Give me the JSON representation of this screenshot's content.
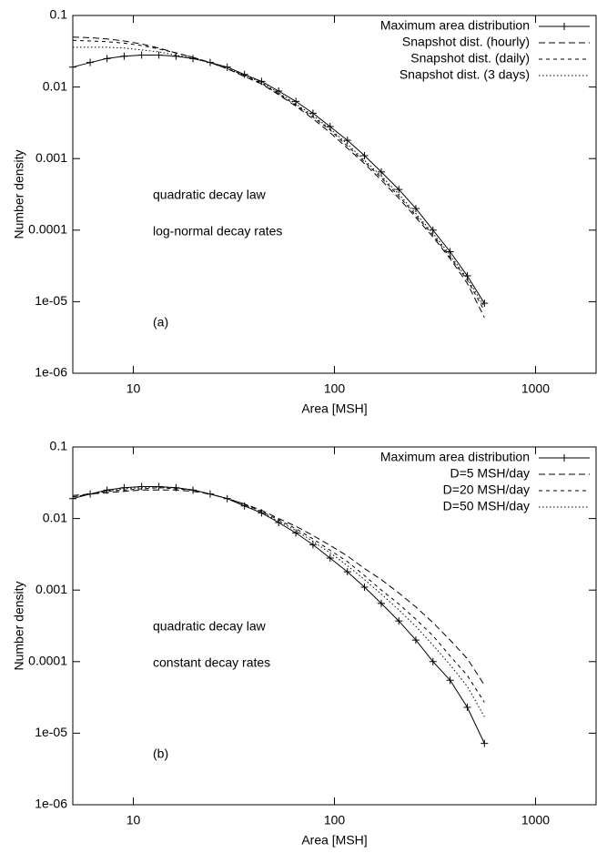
{
  "chart_data": [
    {
      "type": "line",
      "xlabel": "Area [MSH]",
      "ylabel": "Number density",
      "xlog": true,
      "ylog": true,
      "legend": "upper right",
      "xlim": [
        5,
        2000
      ],
      "xticks": [
        10,
        100,
        1000
      ],
      "ylim": [
        1e-06,
        0.1
      ],
      "yticks": [
        0.1,
        0.01,
        0.001,
        0.0001,
        {
          "value": 1e-05,
          "label": "1e-05"
        },
        {
          "value": 1e-06,
          "label": "1e-06"
        }
      ],
      "annotations": [
        "quadratic decay law",
        "log-normal decay rates",
        "(a)"
      ],
      "x": [
        5,
        6.1,
        7.4,
        9,
        11,
        13.4,
        16.3,
        19.8,
        24.1,
        29.3,
        35.7,
        43.4,
        52.8,
        64.3,
        78.2,
        95.2,
        116,
        141,
        171,
        209,
        254,
        309,
        376,
        458,
        557
      ],
      "series": [
        {
          "name": "Maximum area distribution",
          "color": "#000000",
          "style": "solid-plus",
          "values": [
            0.019,
            0.022,
            0.025,
            0.027,
            0.028,
            0.028,
            0.027,
            0.025,
            0.022,
            0.019,
            0.015,
            0.012,
            0.0088,
            0.0063,
            0.0043,
            0.0028,
            0.0018,
            0.0011,
            0.00065,
            0.00037,
            0.0002,
            0.0001,
            5e-05,
            2.3e-05,
            9.5e-06
          ]
        },
        {
          "name": "Snapshot dist. (hourly)",
          "color": "#000000",
          "style": "dashed",
          "values": [
            0.05,
            0.049,
            0.047,
            0.044,
            0.04,
            0.035,
            0.03,
            0.026,
            0.022,
            0.018,
            0.014,
            0.011,
            0.0078,
            0.0054,
            0.0036,
            0.0023,
            0.0014,
            0.00085,
            0.0005,
            0.00028,
            0.00015,
            8e-05,
            4e-05,
            1.8e-05,
            6e-06
          ]
        },
        {
          "name": "Snapshot dist. (daily)",
          "color": "#000000",
          "style": "short-dashed",
          "values": [
            0.045,
            0.044,
            0.043,
            0.041,
            0.038,
            0.034,
            0.03,
            0.026,
            0.022,
            0.018,
            0.0145,
            0.0112,
            0.008,
            0.0056,
            0.0038,
            0.0025,
            0.0015,
            0.0009,
            0.00054,
            0.0003,
            0.00016,
            8.5e-05,
            4.2e-05,
            2e-05,
            7.5e-06
          ]
        },
        {
          "name": "Snapshot dist. (3 days)",
          "color": "#000000",
          "style": "dotted",
          "values": [
            0.036,
            0.036,
            0.036,
            0.035,
            0.033,
            0.031,
            0.028,
            0.025,
            0.022,
            0.018,
            0.0148,
            0.0115,
            0.0083,
            0.0058,
            0.004,
            0.0026,
            0.0016,
            0.00095,
            0.00057,
            0.00032,
            0.00017,
            9e-05,
            4.5e-05,
            2.1e-05,
            8.5e-06
          ]
        }
      ]
    },
    {
      "type": "line",
      "xlabel": "Area [MSH]",
      "ylabel": "Number density",
      "xlog": true,
      "ylog": true,
      "legend": "upper right",
      "xlim": [
        5,
        2000
      ],
      "xticks": [
        10,
        100,
        1000
      ],
      "ylim": [
        1e-06,
        0.1
      ],
      "yticks": [
        0.1,
        0.01,
        0.001,
        0.0001,
        {
          "value": 1e-05,
          "label": "1e-05"
        },
        {
          "value": 1e-06,
          "label": "1e-06"
        }
      ],
      "annotations": [
        "quadratic decay law",
        "constant decay rates",
        "(b)"
      ],
      "x": [
        5,
        6.1,
        7.4,
        9,
        11,
        13.4,
        16.3,
        19.8,
        24.1,
        29.3,
        35.7,
        43.4,
        52.8,
        64.3,
        78.2,
        95.2,
        116,
        141,
        171,
        209,
        254,
        309,
        376,
        458,
        557
      ],
      "series": [
        {
          "name": "Maximum area distribution",
          "color": "#000000",
          "style": "solid-plus",
          "values": [
            0.019,
            0.022,
            0.025,
            0.027,
            0.028,
            0.028,
            0.027,
            0.025,
            0.022,
            0.019,
            0.015,
            0.012,
            0.0088,
            0.0063,
            0.0043,
            0.0028,
            0.0018,
            0.0011,
            0.00065,
            0.00037,
            0.0002,
            0.0001,
            5.5e-05,
            2.3e-05,
            7.2e-06
          ]
        },
        {
          "name": "D=5 MSH/day",
          "color": "#000000",
          "style": "dashed",
          "values": [
            0.021,
            0.022,
            0.023,
            0.024,
            0.025,
            0.025,
            0.025,
            0.024,
            0.022,
            0.019,
            0.016,
            0.013,
            0.01,
            0.0078,
            0.0058,
            0.0042,
            0.003,
            0.002,
            0.0014,
            0.00091,
            0.00058,
            0.00035,
            0.0002,
            0.00011,
            4.7e-05
          ]
        },
        {
          "name": "D=20 MSH/day",
          "color": "#000000",
          "style": "short-dashed",
          "values": [
            0.02,
            0.022,
            0.024,
            0.025,
            0.026,
            0.027,
            0.026,
            0.025,
            0.022,
            0.019,
            0.016,
            0.0125,
            0.0096,
            0.0072,
            0.0052,
            0.0036,
            0.0025,
            0.0016,
            0.001,
            0.00064,
            0.00039,
            0.00023,
            0.00012,
            6.4e-05,
            2.7e-05
          ]
        },
        {
          "name": "D=50 MSH/day",
          "color": "#000000",
          "style": "dotted",
          "values": [
            0.02,
            0.022,
            0.024,
            0.026,
            0.027,
            0.027,
            0.027,
            0.025,
            0.022,
            0.019,
            0.0155,
            0.012,
            0.0092,
            0.0068,
            0.0048,
            0.0033,
            0.0022,
            0.0014,
            0.00088,
            0.00053,
            0.00031,
            0.00017,
            9e-05,
            4.5e-05,
            1.7e-05
          ]
        }
      ]
    }
  ]
}
